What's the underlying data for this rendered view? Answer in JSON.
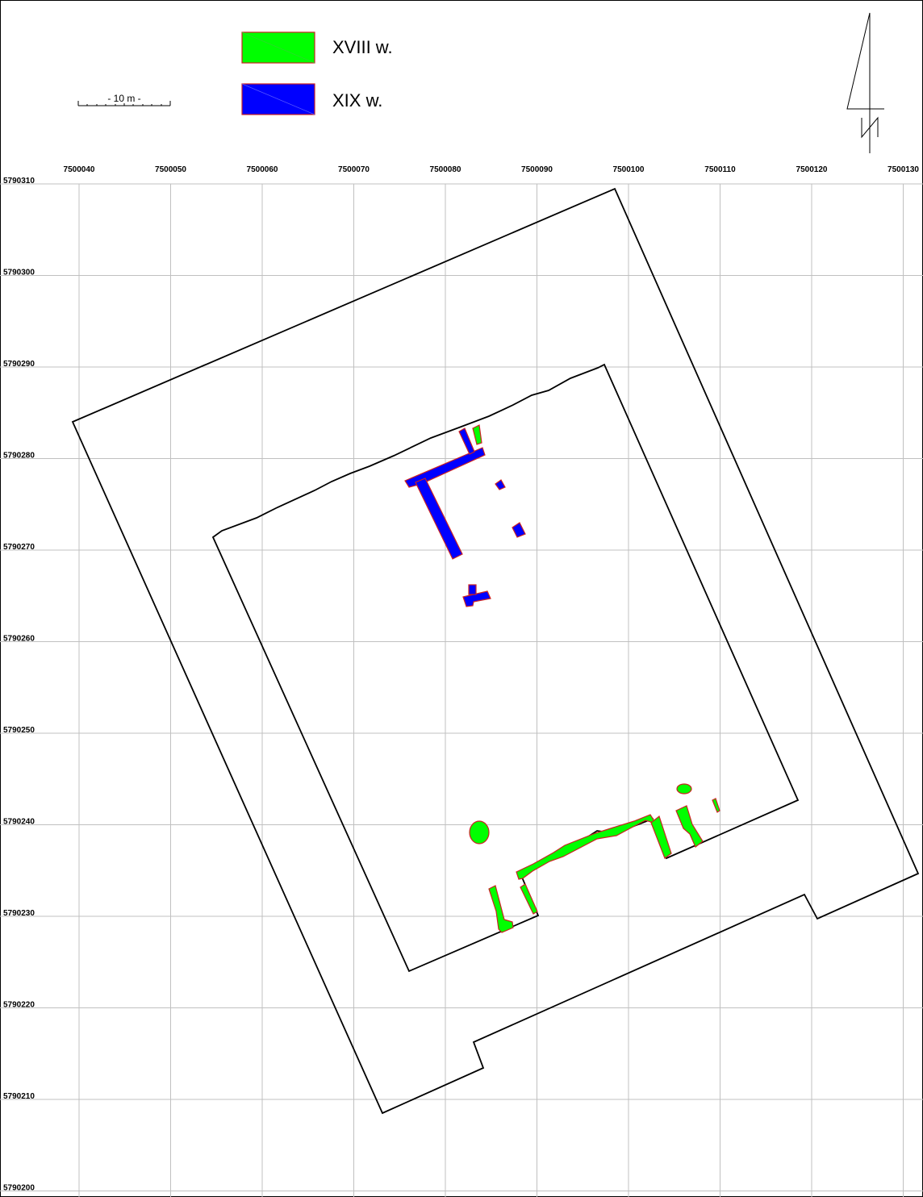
{
  "legend": {
    "items": [
      {
        "label": "XVIII w.",
        "color": "#00ff00"
      },
      {
        "label": "XIX w.",
        "color": "#0000ff"
      }
    ]
  },
  "scale_bar": {
    "label": "- 10 m -"
  },
  "north_arrow": {
    "label": "N"
  },
  "axes": {
    "x_ticks": [
      "7500040",
      "7500050",
      "7500060",
      "7500070",
      "7500080",
      "7500090",
      "7500100",
      "7500110",
      "7500120",
      "7500130"
    ],
    "y_ticks": [
      "5790310",
      "5790300",
      "5790290",
      "5790280",
      "5790270",
      "5790260",
      "5790250",
      "5790240",
      "5790230",
      "5790220",
      "5790210",
      "5790200"
    ]
  },
  "colors": {
    "grid": "#c0c0c0",
    "outline": "#000000",
    "feature_edge": "#cc2222",
    "xviii": "#00ff00",
    "xix": "#0000ff"
  }
}
